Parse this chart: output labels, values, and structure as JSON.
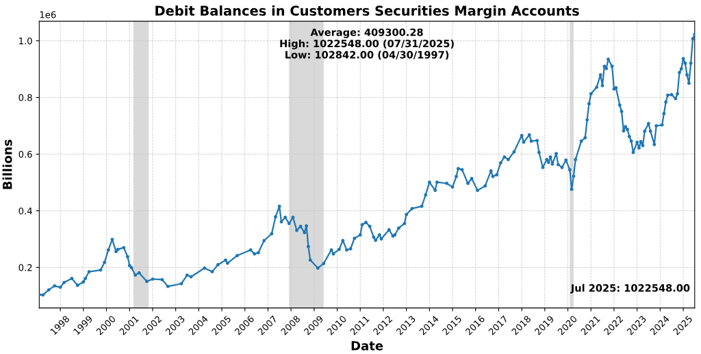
{
  "chart_data": {
    "type": "line",
    "title": "Debit Balances in Customers Securities Margin Accounts",
    "xlabel": "Date",
    "ylabel": "Billions",
    "annotations": [
      "Average: 409300.28\nHigh: 1022548.00 (07/31/2025)\nLow: 102842.00 (04/30/1997)",
      "Jul 2025: 1022548.00",
      "1e6"
    ],
    "x": [
      "1997-02",
      "1997-04",
      "1997-07",
      "1997-10",
      "1998-01",
      "1998-03",
      "1998-07",
      "1998-10",
      "1999-01",
      "1999-02",
      "1999-04",
      "1999-10",
      "1999-12",
      "2000-02",
      "2000-04",
      "2000-06",
      "2000-07",
      "2000-10",
      "2000-12",
      "2001-01",
      "2001-02",
      "2001-04",
      "2001-06",
      "2001-10",
      "2002-01",
      "2002-06",
      "2002-09",
      "2003-04",
      "2003-07",
      "2003-09",
      "2004-04",
      "2004-08",
      "2004-11",
      "2005-03",
      "2005-04",
      "2005-09",
      "2006-04",
      "2006-06",
      "2006-08",
      "2006-11",
      "2007-03",
      "2007-05",
      "2007-07",
      "2007-08",
      "2007-10",
      "2007-12",
      "2008-02",
      "2008-04",
      "2008-06",
      "2008-08",
      "2008-09",
      "2008-10",
      "2008-11",
      "2009-03",
      "2009-06",
      "2009-10",
      "2009-11",
      "2010-02",
      "2010-04",
      "2010-06",
      "2010-08",
      "2010-10",
      "2011-01",
      "2011-02",
      "2011-04",
      "2011-06",
      "2011-08",
      "2011-09",
      "2011-11",
      "2011-12",
      "2012-04",
      "2012-06",
      "2012-07",
      "2012-09",
      "2012-12",
      "2013-01",
      "2013-04",
      "2013-09",
      "2013-11",
      "2014-01",
      "2014-04",
      "2014-05",
      "2014-10",
      "2015-01",
      "2015-03",
      "2015-04",
      "2015-06",
      "2015-09",
      "2015-11",
      "2016-02",
      "2016-06",
      "2016-09",
      "2016-10",
      "2016-12",
      "2017-02",
      "2017-04",
      "2017-06",
      "2017-09",
      "2018-01",
      "2018-02",
      "2018-05",
      "2018-06",
      "2018-09",
      "2018-10",
      "2018-12",
      "2019-02",
      "2019-03",
      "2019-04",
      "2019-05",
      "2019-07",
      "2019-08",
      "2019-10",
      "2019-12",
      "2020-02",
      "2020-03",
      "2020-04",
      "2020-05",
      "2020-08",
      "2020-10",
      "2020-11",
      "2020-12",
      "2021-01",
      "2021-04",
      "2021-06",
      "2021-07",
      "2021-08",
      "2021-09",
      "2021-10",
      "2021-12",
      "2022-01",
      "2022-02",
      "2022-04",
      "2022-05",
      "2022-06",
      "2022-07",
      "2022-08",
      "2022-09",
      "2022-10",
      "2022-11",
      "2023-01",
      "2023-02",
      "2023-03",
      "2023-04",
      "2023-05",
      "2023-07",
      "2023-08",
      "2023-10",
      "2023-11",
      "2024-02",
      "2024-03",
      "2024-04",
      "2024-05",
      "2024-07",
      "2024-09",
      "2024-10",
      "2024-11",
      "2024-12",
      "2025-01",
      "2025-02",
      "2025-03",
      "2025-04",
      "2025-05",
      "2025-06",
      "2025-07"
    ],
    "series": [
      {
        "color": "#1f77b4",
        "values": [
          0.104,
          0.103,
          0.121,
          0.135,
          0.13,
          0.147,
          0.161,
          0.137,
          0.149,
          0.161,
          0.185,
          0.191,
          0.218,
          0.262,
          0.299,
          0.256,
          0.264,
          0.27,
          0.238,
          0.207,
          0.199,
          0.173,
          0.181,
          0.151,
          0.159,
          0.157,
          0.133,
          0.143,
          0.173,
          0.167,
          0.198,
          0.185,
          0.21,
          0.226,
          0.215,
          0.242,
          0.262,
          0.248,
          0.252,
          0.295,
          0.319,
          0.379,
          0.416,
          0.361,
          0.377,
          0.355,
          0.377,
          0.331,
          0.345,
          0.323,
          0.347,
          0.274,
          0.226,
          0.198,
          0.214,
          0.262,
          0.248,
          0.264,
          0.295,
          0.262,
          0.266,
          0.303,
          0.315,
          0.351,
          0.359,
          0.345,
          0.307,
          0.296,
          0.315,
          0.301,
          0.333,
          0.311,
          0.315,
          0.339,
          0.355,
          0.387,
          0.408,
          0.416,
          0.456,
          0.501,
          0.472,
          0.501,
          0.497,
          0.484,
          0.521,
          0.549,
          0.545,
          0.497,
          0.514,
          0.472,
          0.488,
          0.541,
          0.521,
          0.527,
          0.569,
          0.59,
          0.581,
          0.608,
          0.666,
          0.642,
          0.668,
          0.646,
          0.648,
          0.606,
          0.553,
          0.581,
          0.571,
          0.59,
          0.565,
          0.602,
          0.563,
          0.553,
          0.579,
          0.545,
          0.476,
          0.522,
          0.581,
          0.646,
          0.658,
          0.721,
          0.778,
          0.813,
          0.836,
          0.88,
          0.842,
          0.91,
          0.902,
          0.935,
          0.91,
          0.83,
          0.834,
          0.773,
          0.751,
          0.682,
          0.697,
          0.687,
          0.662,
          0.646,
          0.606,
          0.642,
          0.622,
          0.644,
          0.63,
          0.681,
          0.708,
          0.681,
          0.634,
          0.7,
          0.703,
          0.743,
          0.784,
          0.808,
          0.81,
          0.796,
          0.813,
          0.888,
          0.901,
          0.937,
          0.921,
          0.88,
          0.85,
          0.921,
          1.007,
          1.023
        ]
      }
    ],
    "xlim": [
      "1997-02",
      "2025-07"
    ],
    "xticks": [
      "1998",
      "1999",
      "2000",
      "2001",
      "2002",
      "2003",
      "2004",
      "2005",
      "2006",
      "2007",
      "2008",
      "2009",
      "2010",
      "2011",
      "2012",
      "2013",
      "2014",
      "2015",
      "2016",
      "2017",
      "2018",
      "2019",
      "2020",
      "2021",
      "2022",
      "2023",
      "2024",
      "2025"
    ],
    "ylim": [
      0.057,
      1.069
    ],
    "yticks": [
      0.2,
      0.4,
      0.6,
      0.8,
      {
        "value": 1.0,
        "label": "1.0"
      }
    ],
    "bands": [
      {
        "axis": "x",
        "from": "2001-03",
        "to": "2001-11",
        "color": "#d9d9d9"
      },
      {
        "axis": "x",
        "from": "2007-12",
        "to": "2009-06",
        "color": "#d9d9d9"
      },
      {
        "axis": "x",
        "from": "2020-02",
        "to": "2020-04",
        "color": "#d9d9d9"
      }
    ],
    "grid": true,
    "marker": "circle",
    "line_style": "solid",
    "legend": false
  }
}
